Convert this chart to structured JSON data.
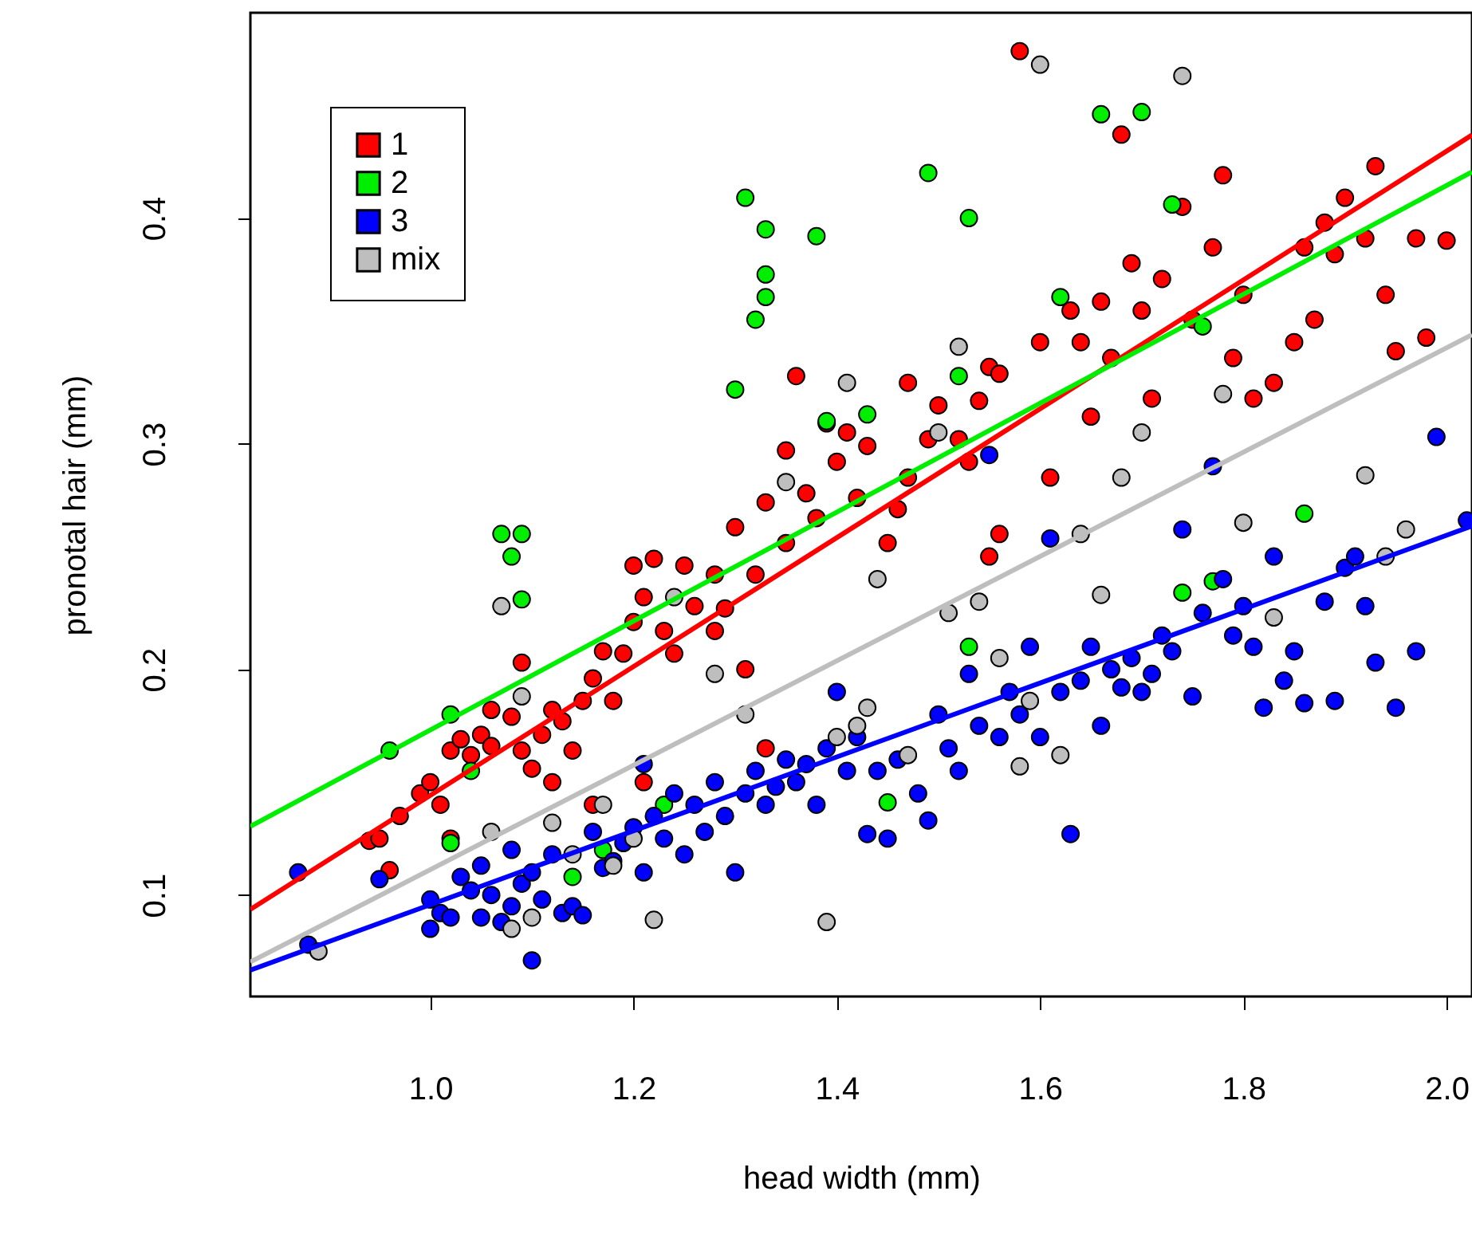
{
  "chart_data": {
    "type": "scatter",
    "xlabel": "head width (mm)",
    "ylabel": "pronotal hair (mm)",
    "xlim": [
      0.823,
      2.025
    ],
    "ylim": [
      0.055,
      0.491
    ],
    "xticks": [
      {
        "value": 1,
        "label": "1.0"
      },
      1.2,
      1.4,
      1.6,
      1.8,
      {
        "value": 2,
        "label": "2.0"
      }
    ],
    "yticks": [
      0.1,
      0.2,
      0.3,
      0.4
    ],
    "grid": false,
    "legend": "top left",
    "series": [
      {
        "type": "scatter",
        "name": "1",
        "marker": "circle",
        "color": "#ff0000",
        "x": [
          0.94,
          0.95,
          0.96,
          0.97,
          0.99,
          1.0,
          1.01,
          1.02,
          1.03,
          1.04,
          1.05,
          1.06,
          1.06,
          1.08,
          1.09,
          1.09,
          1.1,
          1.11,
          1.12,
          1.13,
          1.14,
          1.15,
          1.16,
          1.17,
          1.18,
          1.19,
          1.2,
          1.2,
          1.21,
          1.22,
          1.23,
          1.24,
          1.25,
          1.26,
          1.28,
          1.28,
          1.29,
          1.3,
          1.31,
          1.32,
          1.33,
          1.35,
          1.35,
          1.37,
          1.38,
          1.39,
          1.4,
          1.42,
          1.43,
          1.45,
          1.46,
          1.47,
          1.47,
          1.49,
          1.5,
          1.52,
          1.53,
          1.54,
          1.55,
          1.56,
          1.58,
          1.6,
          1.61,
          1.63,
          1.64,
          1.65,
          1.66,
          1.67,
          1.68,
          1.69,
          1.7,
          1.71,
          1.72,
          1.74,
          1.75,
          1.77,
          1.78,
          1.79,
          1.8,
          1.81,
          1.83,
          1.85,
          1.86,
          1.87,
          1.88,
          1.89,
          1.9,
          1.92,
          1.93,
          1.94,
          1.95,
          1.97,
          1.02,
          1.21,
          1.33,
          1.55,
          1.56,
          2.0,
          1.98,
          1.36,
          1.41,
          1.12,
          1.16
        ],
        "values": [
          0.124,
          0.125,
          0.111,
          0.135,
          0.145,
          0.15,
          0.14,
          0.164,
          0.169,
          0.162,
          0.171,
          0.182,
          0.166,
          0.179,
          0.203,
          0.164,
          0.156,
          0.171,
          0.182,
          0.177,
          0.164,
          0.186,
          0.196,
          0.208,
          0.186,
          0.207,
          0.246,
          0.221,
          0.232,
          0.249,
          0.217,
          0.207,
          0.246,
          0.228,
          0.217,
          0.242,
          0.227,
          0.263,
          0.2,
          0.242,
          0.274,
          0.297,
          0.256,
          0.278,
          0.267,
          0.309,
          0.292,
          0.276,
          0.299,
          0.256,
          0.271,
          0.327,
          0.285,
          0.302,
          0.317,
          0.302,
          0.292,
          0.319,
          0.334,
          0.331,
          0.474,
          0.345,
          0.285,
          0.359,
          0.345,
          0.312,
          0.363,
          0.338,
          0.437,
          0.38,
          0.359,
          0.32,
          0.373,
          0.405,
          0.355,
          0.387,
          0.419,
          0.338,
          0.366,
          0.32,
          0.327,
          0.345,
          0.387,
          0.355,
          0.398,
          0.384,
          0.409,
          0.391,
          0.423,
          0.366,
          0.341,
          0.391,
          0.125,
          0.15,
          0.165,
          0.25,
          0.26,
          0.39,
          0.347,
          0.33,
          0.305,
          0.15,
          0.14
        ]
      },
      {
        "type": "scatter",
        "name": "2",
        "marker": "circle",
        "color": "#00ee00",
        "x": [
          0.96,
          1.02,
          1.02,
          1.04,
          1.07,
          1.09,
          1.08,
          1.09,
          1.14,
          1.3,
          1.31,
          1.32,
          1.33,
          1.33,
          1.33,
          1.38,
          1.39,
          1.43,
          1.45,
          1.49,
          1.52,
          1.53,
          1.53,
          1.62,
          1.66,
          1.7,
          1.73,
          1.74,
          1.76,
          1.77,
          1.86,
          1.23,
          1.17
        ],
        "values": [
          0.164,
          0.18,
          0.123,
          0.155,
          0.26,
          0.26,
          0.25,
          0.231,
          0.108,
          0.324,
          0.409,
          0.355,
          0.375,
          0.395,
          0.365,
          0.392,
          0.31,
          0.313,
          0.141,
          0.42,
          0.33,
          0.4,
          0.21,
          0.365,
          0.446,
          0.447,
          0.406,
          0.234,
          0.352,
          0.239,
          0.269,
          0.14,
          0.12
        ]
      },
      {
        "type": "scatter",
        "name": "3",
        "marker": "circle",
        "color": "#0000ff",
        "x": [
          0.87,
          0.88,
          0.95,
          1.0,
          1.0,
          1.01,
          1.02,
          1.03,
          1.04,
          1.05,
          1.05,
          1.06,
          1.07,
          1.08,
          1.08,
          1.09,
          1.1,
          1.1,
          1.11,
          1.12,
          1.13,
          1.14,
          1.15,
          1.16,
          1.17,
          1.18,
          1.19,
          1.2,
          1.21,
          1.21,
          1.22,
          1.23,
          1.24,
          1.25,
          1.26,
          1.27,
          1.28,
          1.29,
          1.3,
          1.31,
          1.32,
          1.33,
          1.34,
          1.35,
          1.36,
          1.37,
          1.38,
          1.39,
          1.4,
          1.41,
          1.42,
          1.43,
          1.44,
          1.45,
          1.46,
          1.48,
          1.49,
          1.5,
          1.51,
          1.52,
          1.53,
          1.54,
          1.55,
          1.56,
          1.57,
          1.58,
          1.59,
          1.6,
          1.61,
          1.62,
          1.63,
          1.64,
          1.65,
          1.66,
          1.67,
          1.68,
          1.69,
          1.7,
          1.71,
          1.72,
          1.73,
          1.74,
          1.75,
          1.76,
          1.77,
          1.78,
          1.79,
          1.8,
          1.81,
          1.82,
          1.83,
          1.84,
          1.85,
          1.86,
          1.88,
          1.89,
          1.9,
          1.91,
          1.92,
          1.93,
          1.95,
          1.97,
          1.99,
          2.02
        ],
        "values": [
          0.11,
          0.078,
          0.107,
          0.085,
          0.098,
          0.092,
          0.09,
          0.108,
          0.102,
          0.113,
          0.09,
          0.1,
          0.088,
          0.095,
          0.12,
          0.105,
          0.071,
          0.11,
          0.098,
          0.118,
          0.092,
          0.095,
          0.091,
          0.128,
          0.112,
          0.115,
          0.123,
          0.13,
          0.11,
          0.158,
          0.135,
          0.125,
          0.145,
          0.118,
          0.14,
          0.128,
          0.15,
          0.135,
          0.11,
          0.145,
          0.155,
          0.14,
          0.148,
          0.16,
          0.15,
          0.158,
          0.14,
          0.165,
          0.19,
          0.155,
          0.17,
          0.127,
          0.155,
          0.125,
          0.16,
          0.145,
          0.133,
          0.18,
          0.165,
          0.155,
          0.198,
          0.175,
          0.295,
          0.17,
          0.19,
          0.18,
          0.21,
          0.17,
          0.258,
          0.19,
          0.127,
          0.195,
          0.21,
          0.175,
          0.2,
          0.192,
          0.205,
          0.19,
          0.198,
          0.215,
          0.208,
          0.262,
          0.188,
          0.225,
          0.29,
          0.24,
          0.215,
          0.228,
          0.21,
          0.183,
          0.25,
          0.195,
          0.208,
          0.185,
          0.23,
          0.186,
          0.245,
          0.25,
          0.228,
          0.203,
          0.183,
          0.208,
          0.303,
          0.266
        ]
      },
      {
        "type": "scatter",
        "name": "mix",
        "marker": "circle",
        "color": "#bebebe",
        "x": [
          0.89,
          1.06,
          1.07,
          1.08,
          1.09,
          1.1,
          1.12,
          1.14,
          1.17,
          1.18,
          1.2,
          1.22,
          1.24,
          1.28,
          1.31,
          1.35,
          1.39,
          1.4,
          1.41,
          1.42,
          1.43,
          1.44,
          1.47,
          1.5,
          1.51,
          1.52,
          1.54,
          1.56,
          1.58,
          1.59,
          1.6,
          1.62,
          1.64,
          1.66,
          1.68,
          1.7,
          1.74,
          1.78,
          1.8,
          1.83,
          1.92,
          1.94,
          1.96
        ],
        "values": [
          0.075,
          0.128,
          0.228,
          0.085,
          0.188,
          0.09,
          0.132,
          0.118,
          0.14,
          0.113,
          0.125,
          0.089,
          0.232,
          0.198,
          0.18,
          0.283,
          0.088,
          0.17,
          0.327,
          0.175,
          0.183,
          0.24,
          0.162,
          0.305,
          0.225,
          0.343,
          0.23,
          0.205,
          0.157,
          0.186,
          0.468,
          0.162,
          0.26,
          0.233,
          0.285,
          0.305,
          0.463,
          0.322,
          0.265,
          0.223,
          0.286,
          0.25,
          0.262
        ]
      },
      {
        "type": "line",
        "color": "#ff0000",
        "x": [
          0.823,
          2.025
        ],
        "values": [
          0.0936,
          0.4368
        ]
      },
      {
        "type": "line",
        "color": "#00ee00",
        "x": [
          0.823,
          2.025
        ],
        "values": [
          0.1304,
          0.4205
        ]
      },
      {
        "type": "line",
        "color": "#bebebe",
        "x": [
          0.823,
          2.025
        ],
        "values": [
          0.0703,
          0.3483
        ]
      },
      {
        "type": "line",
        "color": "#0000ff",
        "x": [
          0.823,
          2.025
        ],
        "values": [
          0.0667,
          0.2635
        ]
      }
    ]
  }
}
